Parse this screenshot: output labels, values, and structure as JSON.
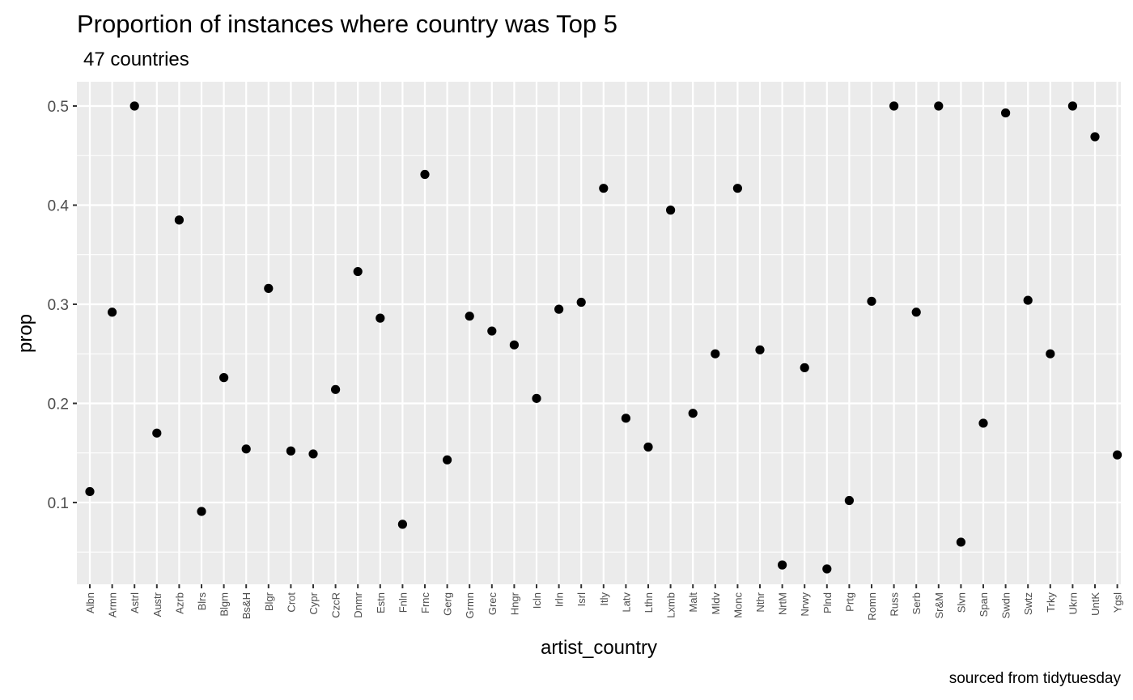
{
  "chart_data": {
    "type": "scatter",
    "title": "Proportion of instances where country was Top 5",
    "subtitle": "47 countries",
    "caption": "sourced from tidytuesday",
    "xlabel": "artist_country",
    "ylabel": "prop",
    "ylim": [
      0.0175,
      0.5245
    ],
    "yticks": [
      0.1,
      0.2,
      0.3,
      0.4,
      0.5
    ],
    "ytick_labels": [
      "0.1",
      "0.2",
      "0.3",
      "0.4",
      "0.5"
    ],
    "grid": true,
    "colors": {
      "panel": "#ebebeb",
      "grid": "#ffffff",
      "point": "#000000"
    },
    "categories": [
      "Albn",
      "Armn",
      "Astrl",
      "Austr",
      "Azrb",
      "Blrs",
      "Blgm",
      "Bs&H",
      "Blgr",
      "Crot",
      "Cypr",
      "CzcR",
      "Dnmr",
      "Estn",
      "Fnln",
      "Frnc",
      "Gerg",
      "Grmn",
      "Grec",
      "Hngr",
      "Icln",
      "Irln",
      "Isrl",
      "Itly",
      "Latv",
      "Lthn",
      "Lxmb",
      "Malt",
      "Mldv",
      "Monc",
      "Nthr",
      "NrtM",
      "Nrwy",
      "Plnd",
      "Prtg",
      "Romn",
      "Russ",
      "Serb",
      "Sr&M",
      "Slvn",
      "Span",
      "Swdn",
      "Swtz",
      "Trky",
      "Ukrn",
      "UntK",
      "Ygsl"
    ],
    "values": [
      0.111,
      0.292,
      0.5,
      0.17,
      0.385,
      0.091,
      0.226,
      0.154,
      0.316,
      0.152,
      0.149,
      0.214,
      0.333,
      0.286,
      0.078,
      0.431,
      0.143,
      0.288,
      0.273,
      0.259,
      0.205,
      0.295,
      0.302,
      0.417,
      0.185,
      0.156,
      0.395,
      0.19,
      0.25,
      0.417,
      0.254,
      0.037,
      0.236,
      0.033,
      0.102,
      0.303,
      0.5,
      0.292,
      0.5,
      0.06,
      0.18,
      0.493,
      0.304,
      0.25,
      0.5,
      0.469,
      0.148
    ]
  }
}
